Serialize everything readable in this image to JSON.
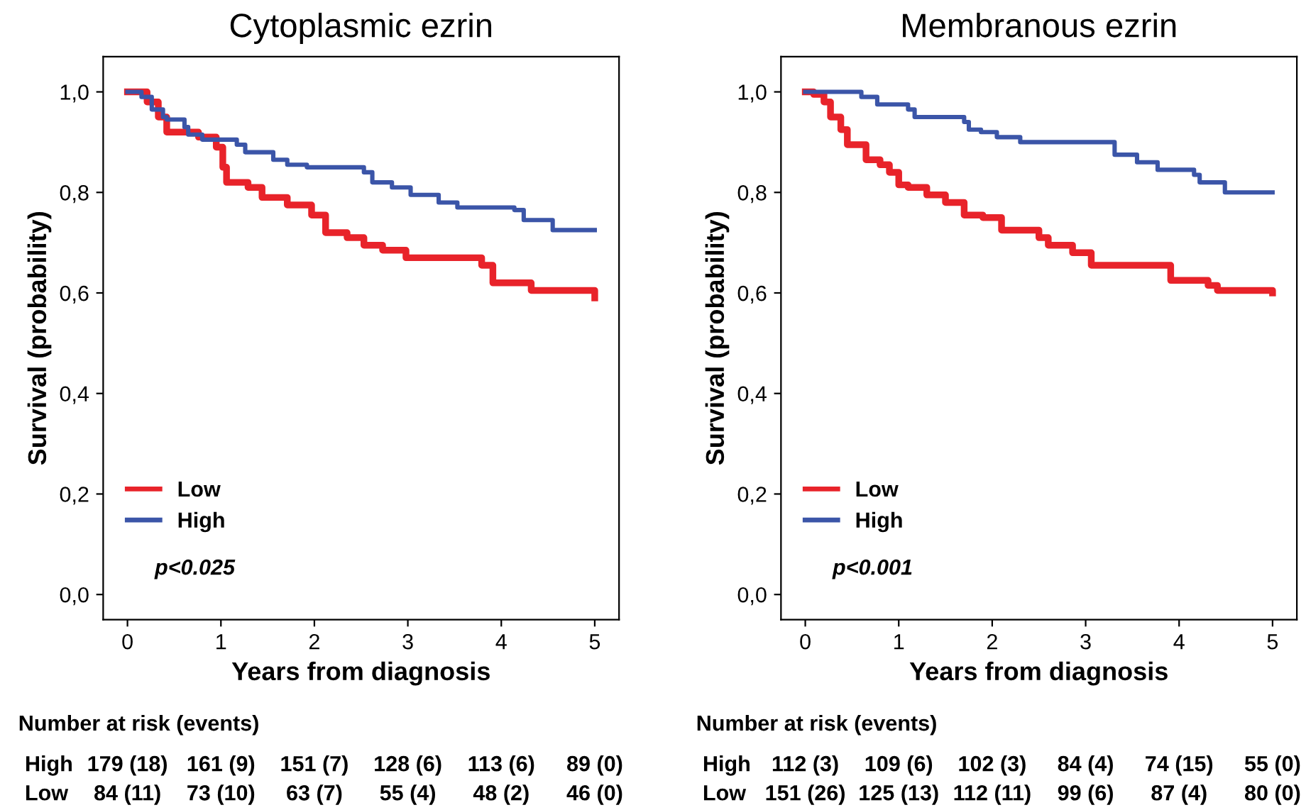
{
  "chart_data": [
    {
      "type": "step",
      "title": "Cytoplasmic ezrin",
      "xlabel": "Years from diagnosis",
      "ylabel": "Survival (probability)",
      "xlim": [
        -0.26,
        5.26
      ],
      "ylim": [
        -0.05,
        1.07
      ],
      "xticks": [
        0,
        1,
        2,
        3,
        4,
        5
      ],
      "yticks": [
        {
          "value": 0,
          "label": "0,0"
        },
        {
          "value": 0.2,
          "label": "0,2"
        },
        {
          "value": 0.4,
          "label": "0,4"
        },
        {
          "value": 0.6,
          "label": "0,6"
        },
        {
          "value": 0.8,
          "label": "0,8"
        },
        {
          "value": 1,
          "label": "1,0"
        }
      ],
      "grid": false,
      "legend": "bottom left",
      "series": [
        {
          "name": "Low",
          "color": "#e8232a",
          "x": [
            0,
            0.21,
            0.33,
            0.42,
            0.76,
            0.95,
            1.02,
            1.06,
            1.29,
            1.44,
            1.71,
            1.97,
            2.12,
            2.35,
            2.53,
            2.73,
            2.98,
            3.79,
            3.91,
            4.32,
            5.0
          ],
          "values": [
            1.0,
            0.98,
            0.95,
            0.92,
            0.91,
            0.89,
            0.85,
            0.82,
            0.81,
            0.79,
            0.775,
            0.755,
            0.72,
            0.71,
            0.695,
            0.685,
            0.67,
            0.655,
            0.62,
            0.605,
            0.59
          ]
        },
        {
          "name": "High",
          "color": "#3b55a8",
          "x": [
            0,
            0.15,
            0.26,
            0.38,
            0.42,
            0.61,
            0.65,
            0.8,
            1.17,
            1.26,
            1.56,
            1.71,
            1.92,
            2.53,
            2.62,
            2.83,
            3.03,
            3.33,
            3.53,
            4.14,
            4.24,
            4.55,
            5.0
          ],
          "values": [
            1.0,
            0.99,
            0.965,
            0.95,
            0.945,
            0.93,
            0.915,
            0.905,
            0.895,
            0.88,
            0.865,
            0.855,
            0.85,
            0.84,
            0.82,
            0.81,
            0.795,
            0.78,
            0.77,
            0.765,
            0.745,
            0.725,
            0.725
          ]
        }
      ],
      "annotations": [
        "p<0.025",
        "Number at risk (events)",
        "High   179 (18)   161 (9)   151 (7)   128 (6)   113 (6)   89 (0)",
        "Low      84 (11)    73 (10)    63 (7)    55 (4)    48 (2)    46 (0)"
      ]
    },
    {
      "type": "step",
      "title": "Membranous ezrin",
      "xlabel": "Years from diagnosis",
      "ylabel": "Survival (probability)",
      "xlim": [
        -0.26,
        5.26
      ],
      "ylim": [
        -0.05,
        1.07
      ],
      "xticks": [
        0,
        1,
        2,
        3,
        4,
        5
      ],
      "yticks": [
        {
          "value": 0,
          "label": "0,0"
        },
        {
          "value": 0.2,
          "label": "0,2"
        },
        {
          "value": 0.4,
          "label": "0,4"
        },
        {
          "value": 0.6,
          "label": "0,6"
        },
        {
          "value": 0.8,
          "label": "0,8"
        },
        {
          "value": 1,
          "label": "1,0"
        }
      ],
      "grid": false,
      "legend": "bottom left",
      "series": [
        {
          "name": "Low",
          "color": "#e8232a",
          "x": [
            0,
            0.09,
            0.2,
            0.27,
            0.38,
            0.45,
            0.65,
            0.8,
            0.9,
            1.0,
            1.1,
            1.3,
            1.5,
            1.7,
            1.9,
            2.1,
            2.5,
            2.6,
            2.86,
            3.06,
            3.91,
            4.31,
            4.41,
            5.0
          ],
          "values": [
            1.0,
            0.995,
            0.98,
            0.95,
            0.925,
            0.895,
            0.865,
            0.855,
            0.84,
            0.815,
            0.81,
            0.795,
            0.78,
            0.755,
            0.75,
            0.725,
            0.71,
            0.695,
            0.68,
            0.655,
            0.625,
            0.615,
            0.605,
            0.6
          ]
        },
        {
          "name": "High",
          "color": "#3b55a8",
          "x": [
            0,
            0.6,
            0.77,
            1.1,
            1.17,
            1.7,
            1.75,
            1.88,
            2.05,
            2.3,
            3.31,
            3.55,
            3.77,
            4.16,
            4.22,
            4.49,
            5.0
          ],
          "values": [
            1.0,
            0.99,
            0.975,
            0.965,
            0.95,
            0.94,
            0.925,
            0.92,
            0.91,
            0.9,
            0.875,
            0.86,
            0.845,
            0.835,
            0.82,
            0.8,
            0.8
          ]
        }
      ],
      "annotations": [
        "p<0.001",
        "Number at risk (events)",
        "High   112 (3)     109 (6)    102 (3)    84 (4)    74 (15)   55 (0)",
        "Low    151 (26)   125 (13)  112 (11)  99 (6)     87 (4)     80 (0)"
      ]
    }
  ]
}
